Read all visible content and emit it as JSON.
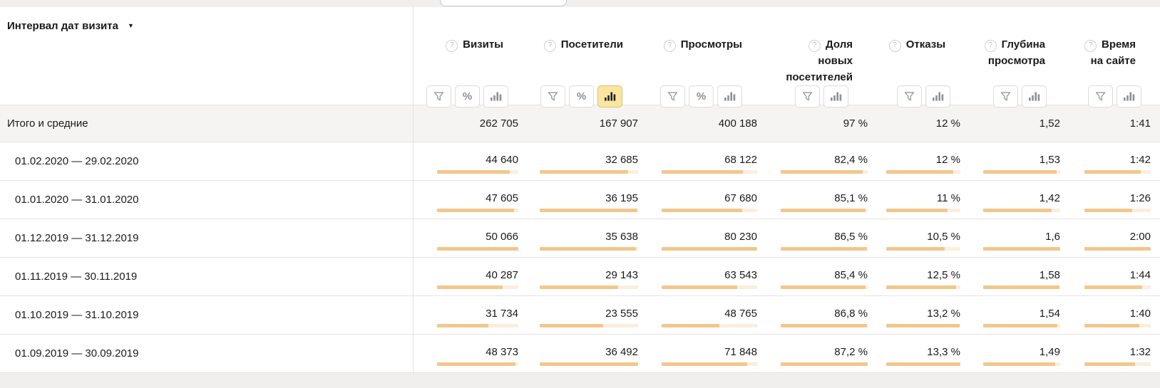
{
  "header": {
    "dimension": {
      "label": "Интервал дат визита",
      "arrow_glyph": "▼"
    },
    "columns": [
      {
        "label": "Визиты",
        "buttons": [
          "filter",
          "percent",
          "chart"
        ],
        "active_button": null
      },
      {
        "label": "Посетители",
        "buttons": [
          "filter",
          "percent",
          "chart"
        ],
        "active_button": "chart"
      },
      {
        "label": "Просмотры",
        "buttons": [
          "filter",
          "percent",
          "chart"
        ],
        "active_button": null
      },
      {
        "label": "Доля\nновых\nпосетителей",
        "buttons": [
          "filter",
          "chart"
        ],
        "active_button": null
      },
      {
        "label": "Отказы",
        "buttons": [
          "filter",
          "chart"
        ],
        "active_button": null
      },
      {
        "label": "Глубина\nпросмотра",
        "buttons": [
          "filter",
          "chart"
        ],
        "active_button": null
      },
      {
        "label": "Время\nна сайте",
        "buttons": [
          "filter",
          "chart"
        ],
        "active_button": null
      }
    ]
  },
  "icons": {
    "help_glyph": "?",
    "percent_glyph": "%"
  },
  "totals": {
    "label": "Итого и средние",
    "values": [
      "262 705",
      "167 907",
      "400 188",
      "97 %",
      "12 %",
      "1,52",
      "1:41"
    ]
  },
  "rows": [
    {
      "label": "01.02.2020 — 29.02.2020",
      "cells": [
        {
          "text": "44 640",
          "bar_pct": 89.2
        },
        {
          "text": "32 685",
          "bar_pct": 89.6
        },
        {
          "text": "68 122",
          "bar_pct": 84.9
        },
        {
          "text": "82,4 %",
          "bar_pct": 94.5
        },
        {
          "text": "12 %",
          "bar_pct": 90.2
        },
        {
          "text": "1,53",
          "bar_pct": 95.6
        },
        {
          "text": "1:42",
          "bar_pct": 85
        }
      ]
    },
    {
      "label": "01.01.2020 — 31.01.2020",
      "cells": [
        {
          "text": "47 605",
          "bar_pct": 95.1
        },
        {
          "text": "36 195",
          "bar_pct": 99.2
        },
        {
          "text": "67 680",
          "bar_pct": 84.4
        },
        {
          "text": "85,1 %",
          "bar_pct": 97.6
        },
        {
          "text": "11 %",
          "bar_pct": 82.7
        },
        {
          "text": "1,42",
          "bar_pct": 88.8
        },
        {
          "text": "1:26",
          "bar_pct": 71.7
        }
      ]
    },
    {
      "label": "01.12.2019 — 31.12.2019",
      "cells": [
        {
          "text": "50 066",
          "bar_pct": 100
        },
        {
          "text": "35 638",
          "bar_pct": 97.7
        },
        {
          "text": "80 230",
          "bar_pct": 100
        },
        {
          "text": "86,5 %",
          "bar_pct": 99.2
        },
        {
          "text": "10,5 %",
          "bar_pct": 78.9
        },
        {
          "text": "1,6",
          "bar_pct": 100
        },
        {
          "text": "2:00",
          "bar_pct": 100
        }
      ]
    },
    {
      "label": "01.11.2019 — 30.11.2019",
      "cells": [
        {
          "text": "40 287",
          "bar_pct": 80.5
        },
        {
          "text": "29 143",
          "bar_pct": 79.9
        },
        {
          "text": "63 543",
          "bar_pct": 79.2
        },
        {
          "text": "85,4 %",
          "bar_pct": 97.9
        },
        {
          "text": "12,5 %",
          "bar_pct": 94
        },
        {
          "text": "1,58",
          "bar_pct": 98.8
        },
        {
          "text": "1:44",
          "bar_pct": 86.7
        }
      ]
    },
    {
      "label": "01.10.2019 — 31.10.2019",
      "cells": [
        {
          "text": "31 734",
          "bar_pct": 63.4
        },
        {
          "text": "23 555",
          "bar_pct": 64.5
        },
        {
          "text": "48 765",
          "bar_pct": 60.8
        },
        {
          "text": "86,8 %",
          "bar_pct": 99.5
        },
        {
          "text": "13,2 %",
          "bar_pct": 99.2
        },
        {
          "text": "1,54",
          "bar_pct": 96.3
        },
        {
          "text": "1:40",
          "bar_pct": 83.3
        }
      ]
    },
    {
      "label": "01.09.2019 — 30.09.2019",
      "cells": [
        {
          "text": "48 373",
          "bar_pct": 96.6
        },
        {
          "text": "36 492",
          "bar_pct": 100
        },
        {
          "text": "71 848",
          "bar_pct": 89.6
        },
        {
          "text": "87,2 %",
          "bar_pct": 100
        },
        {
          "text": "13,3 %",
          "bar_pct": 100
        },
        {
          "text": "1,49",
          "bar_pct": 93.1
        },
        {
          "text": "1:32",
          "bar_pct": 76.7
        }
      ]
    }
  ],
  "colors": {
    "bar_fill": "#f2c78c",
    "bar_track": "#fbeedd",
    "active_btn_bg": "#fbe6a0",
    "active_btn_border": "#d9bf6f",
    "icon_gray": "#8f8f8f",
    "totals_bg": "#f5f4f2",
    "band_bg": "#f1efed",
    "row_border": "#e5e3e1",
    "text": "#1a1a1a"
  }
}
